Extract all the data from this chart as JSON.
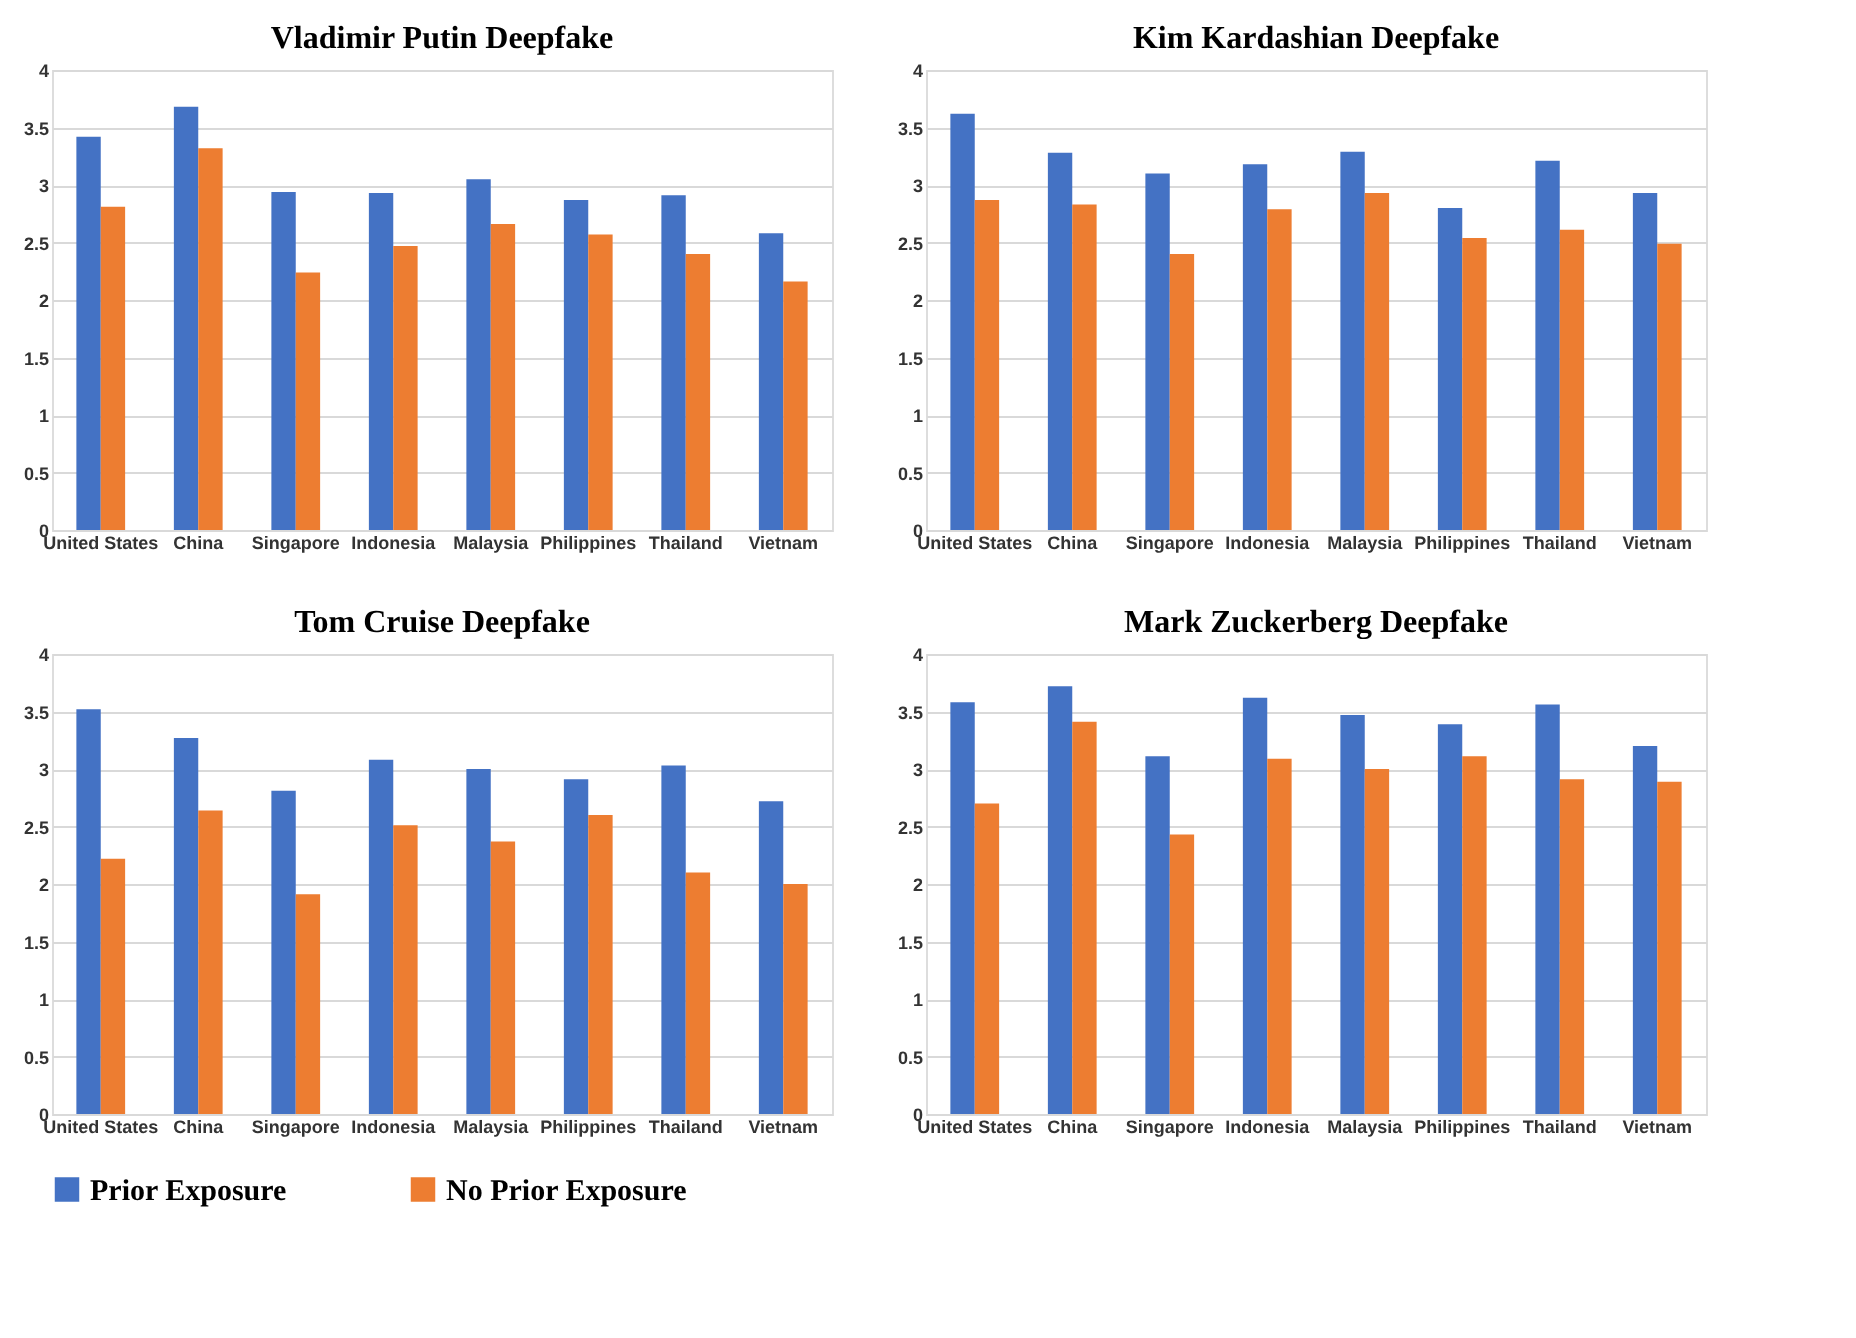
{
  "chart_data": [
    {
      "type": "bar",
      "title": "Vladimir Putin Deepfake",
      "categories": [
        "United States",
        "China",
        "Singapore",
        "Indonesia",
        "Malaysia",
        "Philippines",
        "Thailand",
        "Vietnam"
      ],
      "series": [
        {
          "name": "Prior Exposure",
          "color": "#4472c4",
          "values": [
            3.42,
            3.68,
            2.94,
            2.93,
            3.05,
            2.87,
            2.91,
            2.58
          ]
        },
        {
          "name": "No Prior Exposure",
          "color": "#ed7d31",
          "values": [
            2.81,
            3.32,
            2.24,
            2.47,
            2.66,
            2.57,
            2.4,
            2.16
          ]
        }
      ],
      "ylim": [
        0,
        4
      ],
      "yticks": [
        0,
        0.5,
        1,
        1.5,
        2,
        2.5,
        3,
        3.5,
        4
      ],
      "grid": "y",
      "legend": "bottom"
    },
    {
      "type": "bar",
      "title": "Kim Kardashian Deepfake",
      "categories": [
        "United States",
        "China",
        "Singapore",
        "Indonesia",
        "Malaysia",
        "Philippines",
        "Thailand",
        "Vietnam"
      ],
      "series": [
        {
          "name": "Prior Exposure",
          "color": "#4472c4",
          "values": [
            3.62,
            3.28,
            3.1,
            3.18,
            3.29,
            2.8,
            3.21,
            2.93
          ]
        },
        {
          "name": "No Prior Exposure",
          "color": "#ed7d31",
          "values": [
            2.87,
            2.83,
            2.4,
            2.79,
            2.93,
            2.54,
            2.61,
            2.49
          ]
        }
      ],
      "ylim": [
        0,
        4
      ],
      "yticks": [
        0,
        0.5,
        1,
        1.5,
        2,
        2.5,
        3,
        3.5,
        4
      ],
      "grid": "y",
      "legend": "bottom"
    },
    {
      "type": "bar",
      "title": "Tom Cruise Deepfake",
      "categories": [
        "United States",
        "China",
        "Singapore",
        "Indonesia",
        "Malaysia",
        "Philippines",
        "Thailand",
        "Vietnam"
      ],
      "series": [
        {
          "name": "Prior Exposure",
          "color": "#4472c4",
          "values": [
            3.52,
            3.27,
            2.81,
            3.08,
            3.0,
            2.91,
            3.03,
            2.72
          ]
        },
        {
          "name": "No Prior Exposure",
          "color": "#ed7d31",
          "values": [
            2.22,
            2.64,
            1.91,
            2.51,
            2.37,
            2.6,
            2.1,
            2.0
          ]
        }
      ],
      "ylim": [
        0,
        4
      ],
      "yticks": [
        0,
        0.5,
        1,
        1.5,
        2,
        2.5,
        3,
        3.5,
        4
      ],
      "grid": "y",
      "legend": "bottom"
    },
    {
      "type": "bar",
      "title": "Mark Zuckerberg Deepfake",
      "categories": [
        "United States",
        "China",
        "Singapore",
        "Indonesia",
        "Malaysia",
        "Philippines",
        "Thailand",
        "Vietnam"
      ],
      "series": [
        {
          "name": "Prior Exposure",
          "color": "#4472c4",
          "values": [
            3.58,
            3.72,
            3.11,
            3.62,
            3.47,
            3.39,
            3.56,
            3.2
          ]
        },
        {
          "name": "No Prior Exposure",
          "color": "#ed7d31",
          "values": [
            2.7,
            3.41,
            2.43,
            3.09,
            3.0,
            3.11,
            2.91,
            2.89
          ]
        }
      ],
      "ylim": [
        0,
        4
      ],
      "yticks": [
        0,
        0.5,
        1,
        1.5,
        2,
        2.5,
        3,
        3.5,
        4
      ],
      "grid": "y",
      "legend": "bottom"
    }
  ]
}
